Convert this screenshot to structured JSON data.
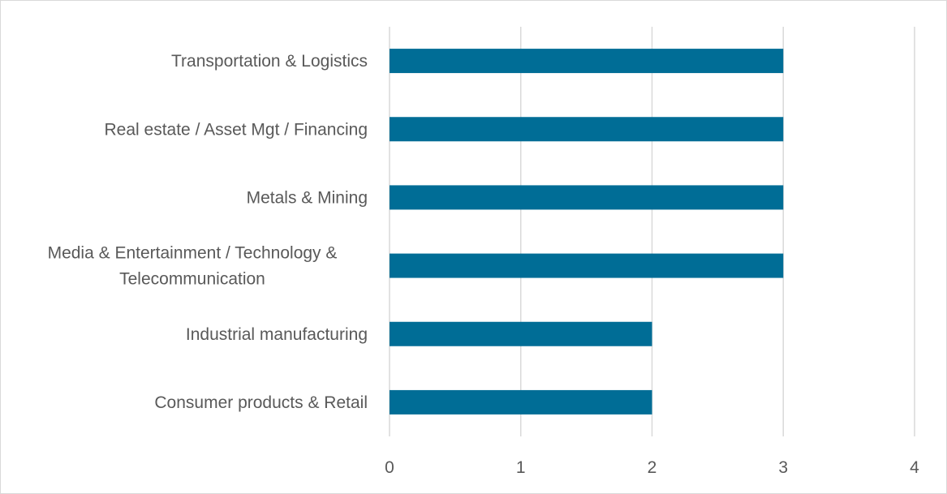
{
  "chart_data": {
    "type": "bar",
    "orientation": "horizontal",
    "categories": [
      "Transportation & Logistics",
      "Real estate / Asset Mgt / Financing",
      "Metals & Mining",
      "Media & Entertainment / Technology & Telecommunication",
      "Industrial manufacturing",
      "Consumer products & Retail"
    ],
    "category_label_lines": [
      [
        "Transportation & Logistics"
      ],
      [
        "Real estate / Asset Mgt / Financing"
      ],
      [
        "Metals & Mining"
      ],
      [
        "Media & Entertainment / Technology &",
        "Telecommunication"
      ],
      [
        "Industrial manufacturing"
      ],
      [
        "Consumer products & Retail"
      ]
    ],
    "values": [
      3,
      3,
      3,
      3,
      2,
      2
    ],
    "xlim": [
      0,
      4
    ],
    "xticks": [
      "0",
      "1",
      "2",
      "3",
      "4"
    ],
    "grid": "vertical",
    "legend": "none",
    "title": "",
    "xlabel": "",
    "ylabel": ""
  },
  "colors": {
    "bar": "#006d96",
    "grid": "#d9d9d9",
    "text": "#595959",
    "border": "#d9d9d9"
  }
}
